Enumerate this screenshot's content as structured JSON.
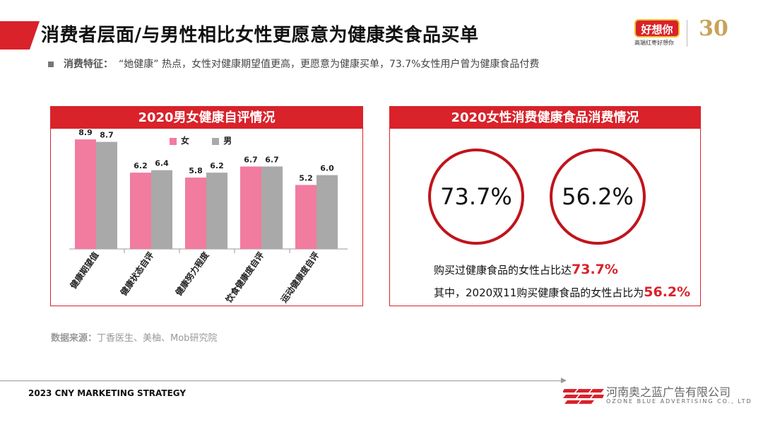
{
  "header": {
    "title": "消费者层面/与男性相比女性更愿意为健康类食品买单",
    "subtitle_label": "消费特征：",
    "subtitle_text": "“她健康” 热点，女性对健康期望值更高，更愿意为健康买单，73.7%女性用户曾为健康食品付费",
    "brand_logo_text": "好想你",
    "brand_logo_sub": "高端红枣好想你",
    "anniversary_number": "30"
  },
  "left_panel": {
    "title": "2020男女健康自评情况"
  },
  "chart_data": {
    "type": "bar",
    "title": "2020男女健康自评情况",
    "categories": [
      "健康期望值",
      "健康状态自评",
      "健康努力程度",
      "饮食健康度自评",
      "运动健康度自评"
    ],
    "series": [
      {
        "name": "女",
        "values": [
          8.9,
          6.2,
          5.8,
          6.7,
          5.2
        ],
        "color": "#f27ba0"
      },
      {
        "name": "男",
        "values": [
          8.7,
          6.4,
          6.2,
          6.7,
          6.0
        ],
        "color": "#a9a9a9"
      }
    ],
    "ylim": [
      0,
      10
    ],
    "grid": false,
    "legend_position": "top"
  },
  "right_panel": {
    "title": "2020女性消费健康食品消费情况",
    "circle1_value": "73.7%",
    "circle2_value": "56.2%",
    "line1_text": "购买过健康食品的女性占比达",
    "line1_value": "73.7%",
    "line2_text": "其中，2020双11购买健康食品的女性占比为",
    "line2_value": "56.2%",
    "accent_color": "#d9222a"
  },
  "source": {
    "label": "数据来源：",
    "text": "丁香医生、美柚、Mob研究院"
  },
  "footer": {
    "left_text": "2023 CNY MARKETING STRATEGY",
    "company_name": "河南奥之蓝广告有限公司",
    "company_en": "OZONE BLUE ADVERTISING CO., LTD"
  }
}
